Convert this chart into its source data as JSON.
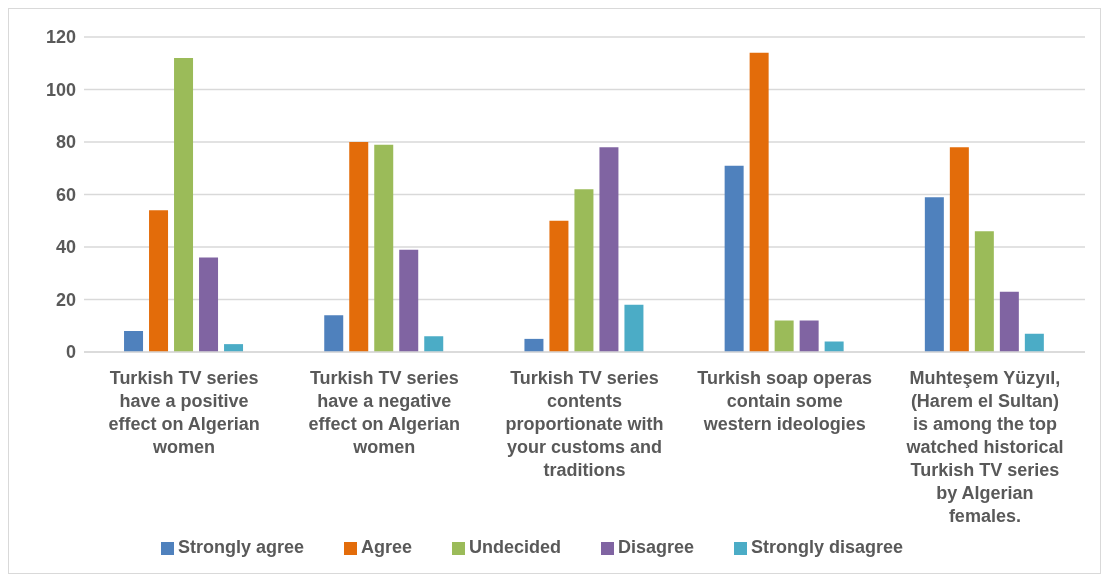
{
  "chart_data": {
    "type": "bar",
    "categories": [
      "Turkish TV series have a positive effect on Algerian women",
      "Turkish TV series have a negative effect on Algerian women",
      "Turkish TV series contents proportionate with your customs and traditions",
      "Turkish soap operas contain some western ideologies",
      "Muhteşem Yüzyıl, (Harem el Sultan) is among the top watched historical Turkish TV series by Algerian females."
    ],
    "series": [
      {
        "name": "Strongly agree",
        "color": "#4f81bd",
        "values": [
          8,
          14,
          5,
          71,
          59
        ]
      },
      {
        "name": "Agree",
        "color": "#e36c0a",
        "values": [
          54,
          80,
          50,
          114,
          78
        ]
      },
      {
        "name": "Undecided",
        "color": "#9bbb59",
        "values": [
          112,
          79,
          62,
          12,
          46
        ]
      },
      {
        "name": "Disagree",
        "color": "#8064a2",
        "values": [
          36,
          39,
          78,
          12,
          23
        ]
      },
      {
        "name": "Strongly disagree",
        "color": "#4bacc6",
        "values": [
          3,
          6,
          18,
          4,
          7
        ]
      }
    ],
    "ylim": [
      0,
      120
    ],
    "yticks": [
      0,
      20,
      40,
      60,
      80,
      100,
      120
    ],
    "grid": "y",
    "legend": "bottom"
  }
}
